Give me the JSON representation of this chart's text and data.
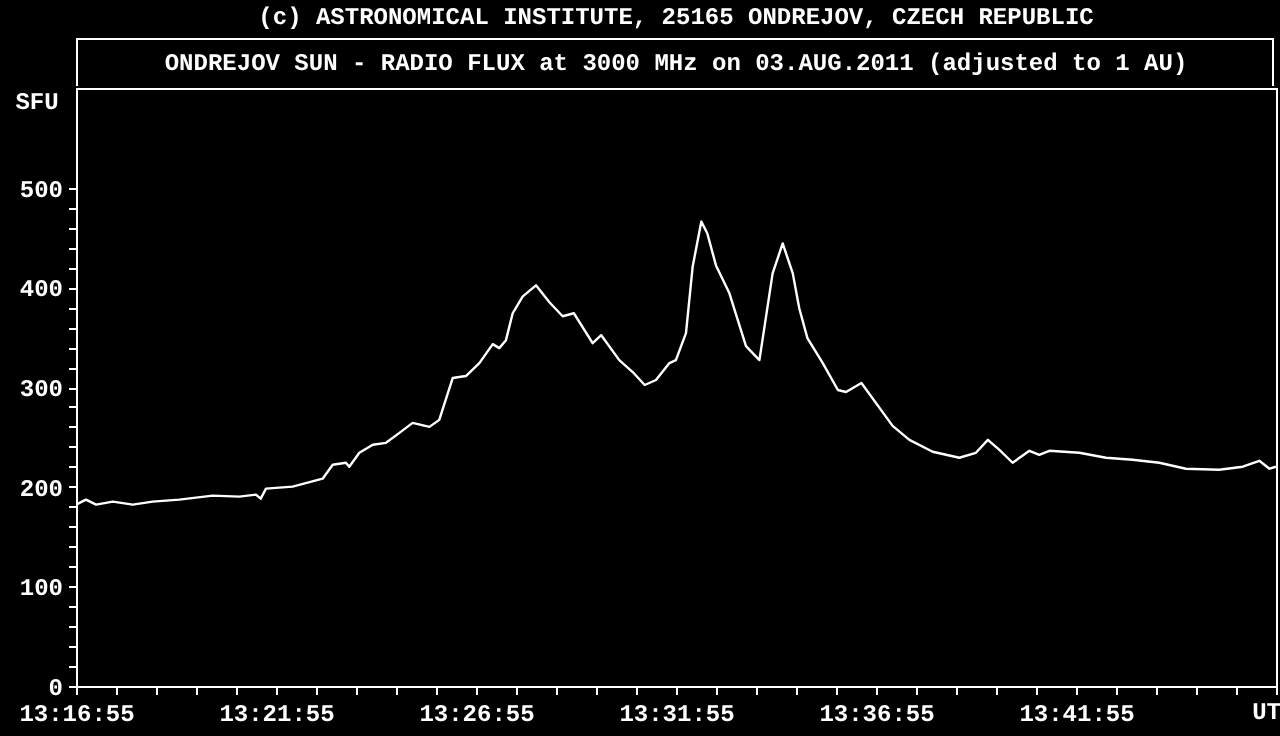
{
  "chart_data": {
    "type": "line",
    "title": "ONDREJOV SUN - RADIO FLUX at 3000 MHz on 03.AUG.2011 (adjusted to 1 AU)",
    "annotations": [
      "(c) ASTRONOMICAL INSTITUTE, 25165 ONDREJOV, CZECH REPUBLIC"
    ],
    "xlabel": "UT",
    "ylabel": "SFU",
    "color": "#ffffff",
    "line_style": "solid",
    "grid": false,
    "x": [
      13.28195,
      13.2861,
      13.2903,
      13.2973,
      13.3056,
      13.3139,
      13.325,
      13.3389,
      13.35,
      13.3569,
      13.3589,
      13.3611,
      13.3722,
      13.3847,
      13.3889,
      13.3944,
      13.3958,
      13.4,
      13.4056,
      13.4111,
      13.4167,
      13.4222,
      13.4292,
      13.4333,
      13.4389,
      13.4444,
      13.45,
      13.4556,
      13.4583,
      13.4611,
      13.4639,
      13.4681,
      13.4736,
      13.4792,
      13.4847,
      13.4894,
      13.4972,
      13.5008,
      13.5083,
      13.5139,
      13.5189,
      13.5236,
      13.5292,
      13.5319,
      13.5361,
      13.5389,
      13.5425,
      13.545,
      13.5486,
      13.5542,
      13.5611,
      13.5667,
      13.5722,
      13.5764,
      13.5806,
      13.5833,
      13.5867,
      13.5931,
      13.5994,
      13.6028,
      13.6092,
      13.6222,
      13.6292,
      13.6389,
      13.65,
      13.6569,
      13.6619,
      13.6667,
      13.6722,
      13.6792,
      13.6833,
      13.6875,
      13.7,
      13.7111,
      13.7222,
      13.7333,
      13.7444,
      13.7583,
      13.7681,
      13.775,
      13.7792,
      13.7819
    ],
    "values": [
      182,
      187,
      182,
      185,
      182,
      185,
      187,
      191,
      190,
      192,
      188,
      198,
      200,
      208,
      222,
      224,
      220,
      234,
      242,
      244,
      254,
      264,
      260,
      267,
      309,
      311,
      324,
      343,
      339,
      347,
      374,
      391,
      402,
      385,
      371,
      374,
      344,
      352,
      327,
      315,
      302,
      307,
      324,
      327,
      354,
      421,
      466,
      454,
      422,
      394,
      341,
      327,
      414,
      444,
      414,
      379,
      349,
      324,
      297,
      295,
      304,
      261,
      247,
      235,
      229,
      234,
      247,
      237,
      224,
      236,
      232,
      236,
      234,
      229,
      227,
      224,
      218,
      217,
      220,
      226,
      218,
      220
    ],
    "xlim": [
      13.281944,
      13.781944
    ],
    "ylim": [
      0,
      600
    ],
    "xticks": [
      {
        "value": 13.281944,
        "label": "13:16:55"
      },
      {
        "value": 13.298611,
        "label": null
      },
      {
        "value": 13.315278,
        "label": null
      },
      {
        "value": 13.331944,
        "label": null
      },
      {
        "value": 13.348611,
        "label": null
      },
      {
        "value": 13.365278,
        "label": "13:21:55"
      },
      {
        "value": 13.381944,
        "label": null
      },
      {
        "value": 13.398611,
        "label": null
      },
      {
        "value": 13.415278,
        "label": null
      },
      {
        "value": 13.431944,
        "label": null
      },
      {
        "value": 13.448611,
        "label": "13:26:55"
      },
      {
        "value": 13.465278,
        "label": null
      },
      {
        "value": 13.481944,
        "label": null
      },
      {
        "value": 13.498611,
        "label": null
      },
      {
        "value": 13.515278,
        "label": null
      },
      {
        "value": 13.531944,
        "label": "13:31:55"
      },
      {
        "value": 13.548611,
        "label": null
      },
      {
        "value": 13.565278,
        "label": null
      },
      {
        "value": 13.581944,
        "label": null
      },
      {
        "value": 13.598611,
        "label": null
      },
      {
        "value": 13.615278,
        "label": "13:36:55"
      },
      {
        "value": 13.631944,
        "label": null
      },
      {
        "value": 13.648611,
        "label": null
      },
      {
        "value": 13.665278,
        "label": null
      },
      {
        "value": 13.681944,
        "label": null
      },
      {
        "value": 13.698611,
        "label": "13:41:55"
      },
      {
        "value": 13.715278,
        "label": null
      },
      {
        "value": 13.731944,
        "label": null
      },
      {
        "value": 13.748611,
        "label": null
      },
      {
        "value": 13.765278,
        "label": null
      },
      {
        "value": 13.781944,
        "label": null
      }
    ],
    "yticks": [
      0,
      {
        "value": 20,
        "label": null
      },
      {
        "value": 40,
        "label": null
      },
      {
        "value": 60,
        "label": null
      },
      {
        "value": 80,
        "label": null
      },
      100,
      {
        "value": 120,
        "label": null
      },
      {
        "value": 140,
        "label": null
      },
      {
        "value": 160,
        "label": null
      },
      {
        "value": 180,
        "label": null
      },
      200,
      {
        "value": 220,
        "label": null
      },
      {
        "value": 240,
        "label": null
      },
      {
        "value": 260,
        "label": null
      },
      {
        "value": 280,
        "label": null
      },
      300,
      {
        "value": 320,
        "label": null
      },
      {
        "value": 340,
        "label": null
      },
      {
        "value": 360,
        "label": null
      },
      {
        "value": 380,
        "label": null
      },
      400,
      {
        "value": 420,
        "label": null
      },
      {
        "value": 440,
        "label": null
      },
      {
        "value": 460,
        "label": null
      },
      {
        "value": 480,
        "label": null
      },
      500
    ]
  }
}
